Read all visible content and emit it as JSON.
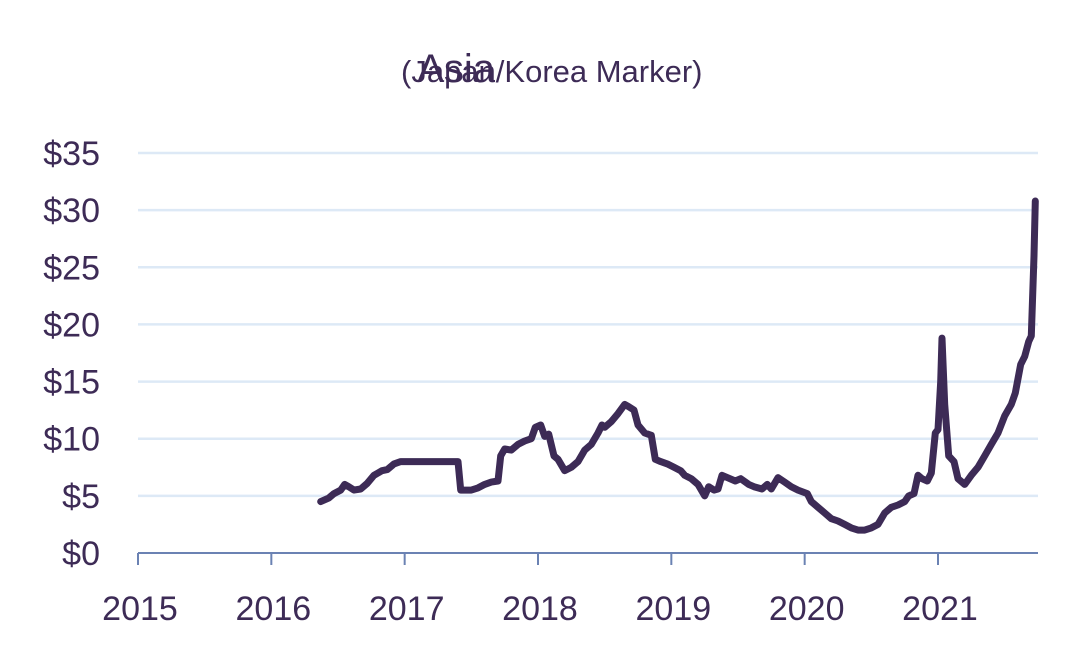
{
  "chart_data": {
    "type": "line",
    "title": "Asia",
    "subtitle": "(Japan/Korea Marker)",
    "xlabel": "",
    "ylabel": "",
    "x_ticks": [
      "2015",
      "2016",
      "2017",
      "2018",
      "2019",
      "2020",
      "2021"
    ],
    "y_ticks": [
      "$0",
      "$5",
      "$10",
      "$15",
      "$20",
      "$25",
      "$30",
      "$35"
    ],
    "xlim": [
      2015.0,
      2021.75
    ],
    "ylim": [
      0,
      35
    ],
    "grid": true,
    "legend": "none",
    "colors": {
      "line": "#3d2b56",
      "grid": "#dde9f6",
      "axis": "#6b82b3",
      "text": "#3d2b56"
    },
    "series": [
      {
        "x": [
          2016.37,
          2016.43,
          2016.47,
          2016.52,
          2016.55,
          2016.58,
          2016.62,
          2016.67,
          2016.72,
          2016.77,
          2016.8,
          2016.83,
          2016.87,
          2016.92,
          2016.97,
          2017.0,
          2017.1,
          2017.2,
          2017.3,
          2017.35,
          2017.4,
          2017.42,
          2017.45,
          2017.5,
          2017.55,
          2017.6,
          2017.65,
          2017.7,
          2017.72,
          2017.75,
          2017.8,
          2017.85,
          2017.9,
          2017.95,
          2017.98,
          2018.02,
          2018.05,
          2018.08,
          2018.12,
          2018.15,
          2018.2,
          2018.25,
          2018.3,
          2018.35,
          2018.4,
          2018.45,
          2018.48,
          2018.5,
          2018.55,
          2018.6,
          2018.65,
          2018.68,
          2018.72,
          2018.75,
          2018.8,
          2018.85,
          2018.88,
          2018.92,
          2018.97,
          2019.02,
          2019.07,
          2019.1,
          2019.15,
          2019.2,
          2019.25,
          2019.28,
          2019.32,
          2019.35,
          2019.38,
          2019.42,
          2019.48,
          2019.52,
          2019.58,
          2019.62,
          2019.68,
          2019.72,
          2019.75,
          2019.8,
          2019.85,
          2019.9,
          2019.95,
          2020.02,
          2020.05,
          2020.1,
          2020.15,
          2020.2,
          2020.25,
          2020.3,
          2020.35,
          2020.4,
          2020.45,
          2020.5,
          2020.55,
          2020.6,
          2020.65,
          2020.7,
          2020.75,
          2020.78,
          2020.82,
          2020.85,
          2020.88,
          2020.92,
          2020.95,
          2020.98,
          2021.0,
          2021.02,
          2021.03,
          2021.05,
          2021.08,
          2021.12,
          2021.15,
          2021.2,
          2021.25,
          2021.3,
          2021.35,
          2021.4,
          2021.45,
          2021.5,
          2021.55,
          2021.58,
          2021.62,
          2021.65,
          2021.68,
          2021.7,
          2021.72,
          2021.73
        ],
        "values": [
          4.5,
          4.8,
          5.2,
          5.5,
          6.0,
          5.8,
          5.5,
          5.6,
          6.1,
          6.8,
          7.0,
          7.2,
          7.3,
          7.8,
          8.0,
          8.0,
          8.0,
          8.0,
          8.0,
          8.0,
          8.0,
          5.5,
          5.5,
          5.5,
          5.7,
          6.0,
          6.2,
          6.3,
          8.5,
          9.1,
          9.0,
          9.5,
          9.8,
          10.0,
          11.0,
          11.2,
          10.2,
          10.4,
          8.5,
          8.2,
          7.2,
          7.5,
          8.0,
          9.0,
          9.5,
          10.5,
          11.2,
          11.0,
          11.5,
          12.2,
          13.0,
          12.8,
          12.5,
          11.2,
          10.5,
          10.3,
          8.2,
          8.0,
          7.8,
          7.5,
          7.2,
          6.8,
          6.5,
          6.0,
          5.0,
          5.8,
          5.5,
          5.6,
          6.8,
          6.6,
          6.3,
          6.5,
          6.0,
          5.8,
          5.6,
          6.0,
          5.6,
          6.6,
          6.2,
          5.8,
          5.5,
          5.2,
          4.5,
          4.0,
          3.5,
          3.0,
          2.8,
          2.5,
          2.2,
          2.0,
          2.0,
          2.2,
          2.5,
          3.5,
          4.0,
          4.2,
          4.5,
          5.0,
          5.2,
          6.8,
          6.5,
          6.3,
          7.0,
          10.5,
          10.8,
          15.0,
          18.8,
          13.0,
          8.5,
          8.0,
          6.5,
          6.0,
          6.8,
          7.5,
          8.5,
          9.5,
          10.5,
          12.0,
          13.0,
          14.0,
          16.5,
          17.2,
          18.5,
          19.0,
          26.0,
          30.8
        ]
      }
    ]
  }
}
